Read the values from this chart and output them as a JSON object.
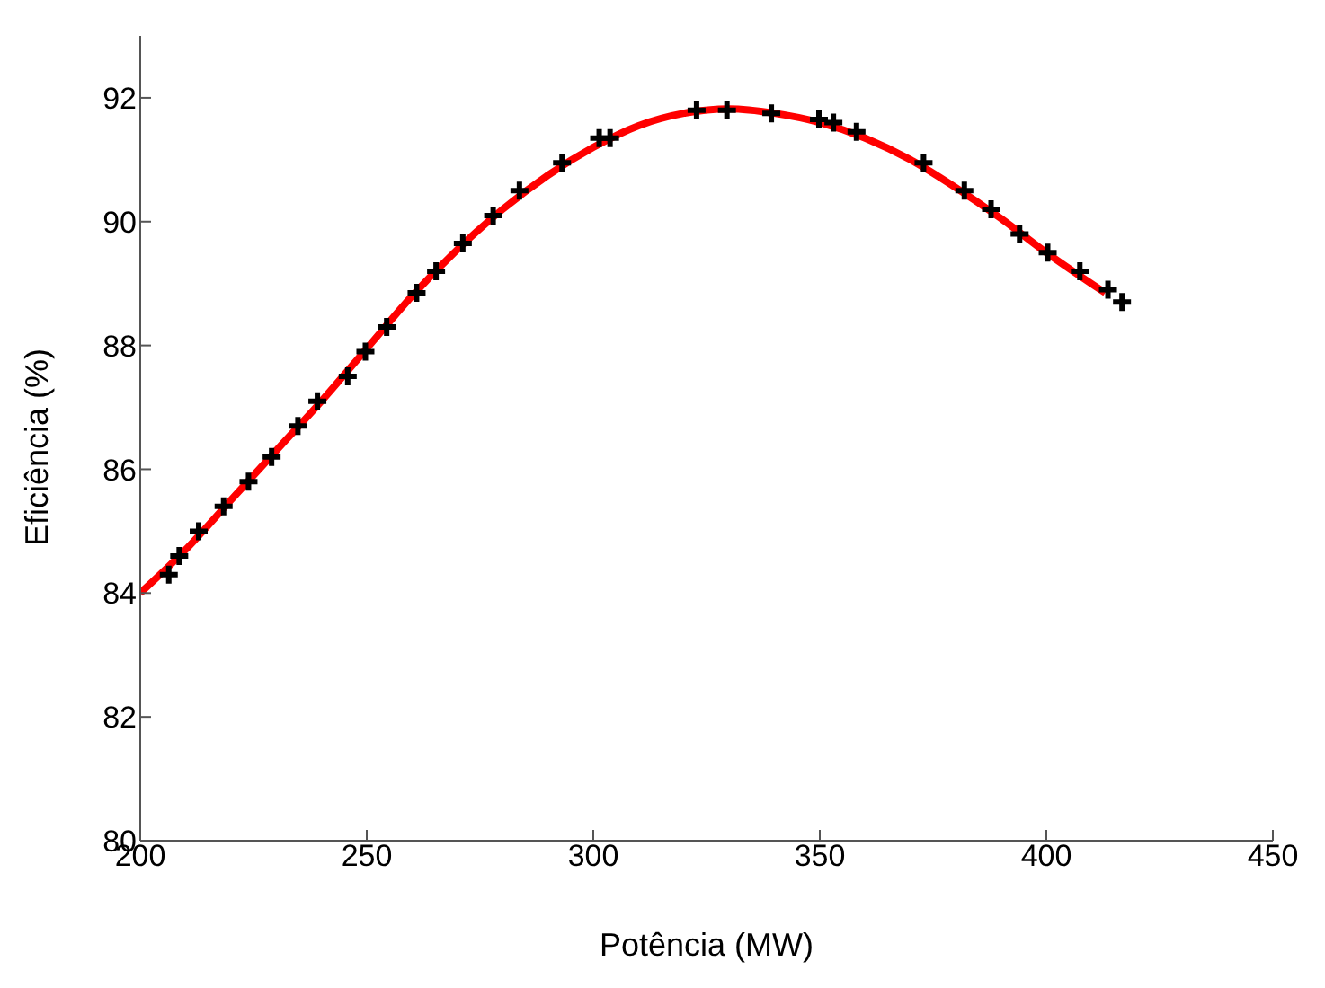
{
  "chart_data": {
    "type": "scatter",
    "xlabel": "Potência (MW)",
    "ylabel": "Eficiência (%)",
    "xlim": [
      200,
      450
    ],
    "xticks": [
      200,
      250,
      300,
      350,
      400,
      450
    ],
    "ylim": [
      80,
      93
    ],
    "yticks": [
      80,
      82,
      84,
      86,
      88,
      90,
      92
    ],
    "grid": false,
    "marker": "cross",
    "series": [
      {
        "color": "#000000",
        "x": [
          206.3,
          208.6,
          212.9,
          218.4,
          223.9,
          229.0,
          234.8,
          239.1,
          245.8,
          249.7,
          254.4,
          261.0,
          265.3,
          271.2,
          277.9,
          283.7,
          293.1,
          301.3,
          303.7,
          322.8,
          329.5,
          339.3,
          349.8,
          353.0,
          358.1,
          372.9,
          381.9,
          387.8,
          394.1,
          400.3,
          407.4,
          413.6,
          416.7
        ],
        "values": [
          84.3,
          84.6,
          85.0,
          85.4,
          85.8,
          86.2,
          86.7,
          87.1,
          87.5,
          87.9,
          88.3,
          88.85,
          89.2,
          89.65,
          90.1,
          90.5,
          90.95,
          91.35,
          91.35,
          91.8,
          91.8,
          91.75,
          91.65,
          91.6,
          91.45,
          90.95,
          90.5,
          90.2,
          89.8,
          89.5,
          89.2,
          88.9,
          88.7
        ]
      },
      {
        "type": "line",
        "color": "#ff0000",
        "marker": "none",
        "line_style": "solid",
        "x": [
          200,
          210,
          220,
          230,
          240,
          250,
          260,
          270,
          280,
          290,
          300,
          310,
          320,
          330,
          340,
          350,
          360,
          370,
          380,
          390,
          400,
          413
        ],
        "values": [
          84.0,
          84.7,
          85.5,
          86.3,
          87.1,
          87.95,
          88.8,
          89.55,
          90.2,
          90.75,
          91.2,
          91.55,
          91.75,
          91.82,
          91.75,
          91.6,
          91.35,
          91.0,
          90.55,
          90.05,
          89.5,
          88.85
        ]
      }
    ]
  }
}
